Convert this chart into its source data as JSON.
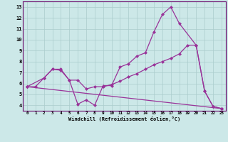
{
  "xlabel": "Windchill (Refroidissement éolien,°C)",
  "bg_color": "#cce8e8",
  "grid_color": "#aacccc",
  "line_color": "#993399",
  "xlim": [
    -0.5,
    23.5
  ],
  "ylim": [
    3.5,
    13.5
  ],
  "xticks": [
    0,
    1,
    2,
    3,
    4,
    5,
    6,
    7,
    8,
    9,
    10,
    11,
    12,
    13,
    14,
    15,
    16,
    17,
    18,
    19,
    20,
    21,
    22,
    23
  ],
  "yticks": [
    4,
    5,
    6,
    7,
    8,
    9,
    10,
    11,
    12,
    13
  ],
  "line_straight": {
    "x": [
      0,
      23
    ],
    "y": [
      5.7,
      3.7
    ]
  },
  "line_middle": {
    "x": [
      0,
      1,
      2,
      3,
      4,
      5,
      6,
      7,
      8,
      9,
      10,
      11,
      12,
      13,
      14,
      15,
      16,
      17,
      18,
      19,
      20,
      21,
      22,
      23
    ],
    "y": [
      5.7,
      5.7,
      6.5,
      7.3,
      7.2,
      6.3,
      6.3,
      5.5,
      5.7,
      5.7,
      5.9,
      6.2,
      6.6,
      6.9,
      7.3,
      7.7,
      8.0,
      8.3,
      8.7,
      9.5,
      9.5,
      5.3,
      3.9,
      3.7
    ]
  },
  "line_top": {
    "x": [
      0,
      2,
      3,
      4,
      5,
      6,
      7,
      8,
      9,
      10,
      11,
      12,
      13,
      14,
      15,
      16,
      17,
      18,
      20,
      21,
      22,
      23
    ],
    "y": [
      5.7,
      6.5,
      7.3,
      7.3,
      6.3,
      4.1,
      4.5,
      4.0,
      5.8,
      5.8,
      7.5,
      7.8,
      8.5,
      8.8,
      10.7,
      12.3,
      13.0,
      11.5,
      9.5,
      5.3,
      3.9,
      3.7
    ]
  }
}
